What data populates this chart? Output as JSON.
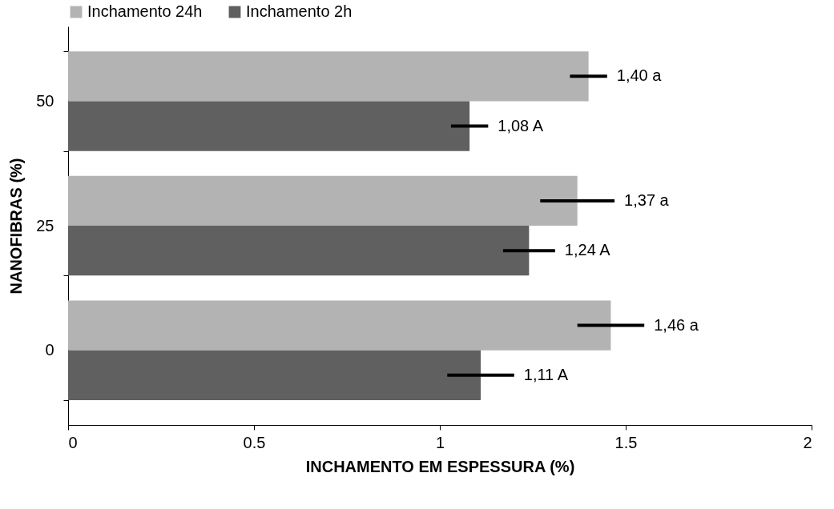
{
  "chart_data": {
    "type": "bar",
    "orientation": "horizontal",
    "xlabel": "INCHAMENTO EM ESPESSURA (%)",
    "ylabel": "NANOFIBRAS (%)",
    "categories": [
      "50",
      "25",
      "0"
    ],
    "xlim": [
      0,
      2
    ],
    "xticks": [
      0,
      0.5,
      1,
      1.5,
      2
    ],
    "legend": "top",
    "series": [
      {
        "name": "Inchamento 24h",
        "color": "#b3b3b3",
        "values": [
          1.4,
          1.37,
          1.46
        ],
        "errors": [
          0.05,
          0.1,
          0.09
        ],
        "value_labels": [
          "1,40 a",
          "1,37 a",
          "1,46 a"
        ]
      },
      {
        "name": "Inchamento 2h",
        "color": "#606060",
        "values": [
          1.08,
          1.24,
          1.11
        ],
        "errors": [
          0.05,
          0.07,
          0.09
        ],
        "value_labels": [
          "1,08 A",
          "1,24 A",
          "1,11 A"
        ]
      }
    ]
  }
}
